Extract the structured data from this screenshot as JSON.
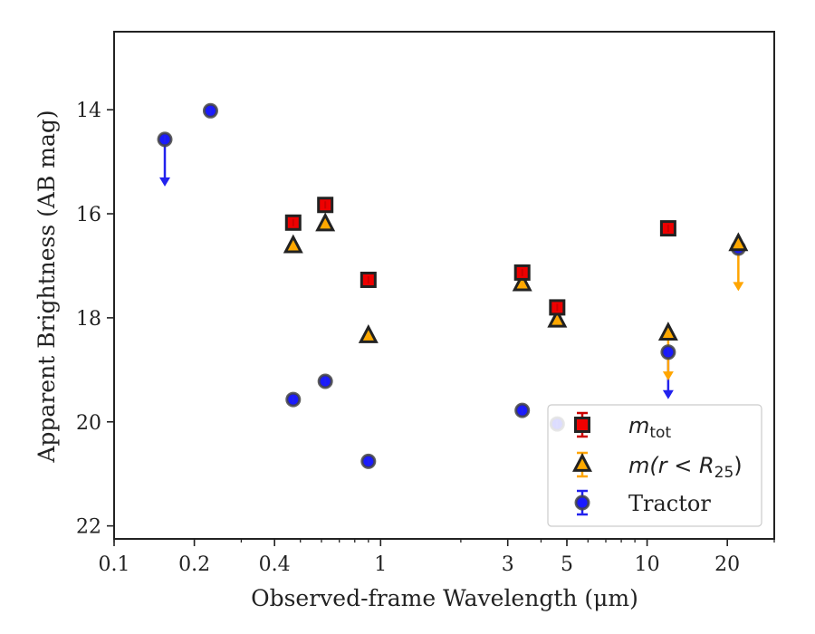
{
  "chart_data": {
    "type": "scatter",
    "xlabel": "Observed-frame Wavelength (μm)",
    "ylabel": "Apparent Brightness (AB mag)",
    "xscale": "log",
    "xlim": [
      0.1,
      30
    ],
    "ylim": [
      22.25,
      12.5
    ],
    "y_inverted": true,
    "xticks": [
      {
        "value": 0.1,
        "label": "0.1"
      },
      {
        "value": 0.2,
        "label": "0.2"
      },
      {
        "value": 0.4,
        "label": "0.4"
      },
      {
        "value": 1,
        "label": "1"
      },
      {
        "value": 3,
        "label": "3"
      },
      {
        "value": 5,
        "label": "5"
      },
      {
        "value": 10,
        "label": "10"
      },
      {
        "value": 20,
        "label": "20"
      }
    ],
    "yticks": [
      {
        "value": 14,
        "label": "14"
      },
      {
        "value": 16,
        "label": "16"
      },
      {
        "value": 18,
        "label": "18"
      },
      {
        "value": 20,
        "label": "20"
      },
      {
        "value": 22,
        "label": "22"
      }
    ],
    "legend_position": "lower-right",
    "series": [
      {
        "name": "m_tot",
        "marker": "square",
        "color": "#ee0000",
        "edge": "#222222",
        "errcolor": "#cc0000",
        "points": [
          {
            "x": 0.47,
            "y": 16.17
          },
          {
            "x": 0.62,
            "y": 15.83
          },
          {
            "x": 0.9,
            "y": 17.27
          },
          {
            "x": 3.4,
            "y": 17.13
          },
          {
            "x": 4.6,
            "y": 17.8
          },
          {
            "x": 12.0,
            "y": 16.28
          }
        ]
      },
      {
        "name": "m(r < R25)",
        "marker": "triangle",
        "color": "#ffaa00",
        "edge": "#222222",
        "errcolor": "#ffa500",
        "points": [
          {
            "x": 0.47,
            "y": 16.62
          },
          {
            "x": 0.62,
            "y": 16.2
          },
          {
            "x": 0.9,
            "y": 18.35
          },
          {
            "x": 3.4,
            "y": 17.35
          },
          {
            "x": 4.6,
            "y": 18.05
          },
          {
            "x": 12.0,
            "y": 18.3,
            "upper_limit": true
          },
          {
            "x": 22.0,
            "y": 16.58,
            "upper_limit": true
          }
        ]
      },
      {
        "name": "Tractor",
        "marker": "circle",
        "color": "#1a1aff",
        "edge": "#444444",
        "errcolor": "#2222ee",
        "points": [
          {
            "x": 0.155,
            "y": 14.57,
            "upper_limit": true
          },
          {
            "x": 0.23,
            "y": 14.02
          },
          {
            "x": 0.47,
            "y": 19.57
          },
          {
            "x": 0.62,
            "y": 19.22
          },
          {
            "x": 0.9,
            "y": 20.76
          },
          {
            "x": 3.4,
            "y": 19.78
          },
          {
            "x": 4.6,
            "y": 20.04
          },
          {
            "x": 12.0,
            "y": 18.66,
            "upper_limit": true
          },
          {
            "x": 22.0,
            "y": 16.66
          }
        ]
      }
    ]
  }
}
